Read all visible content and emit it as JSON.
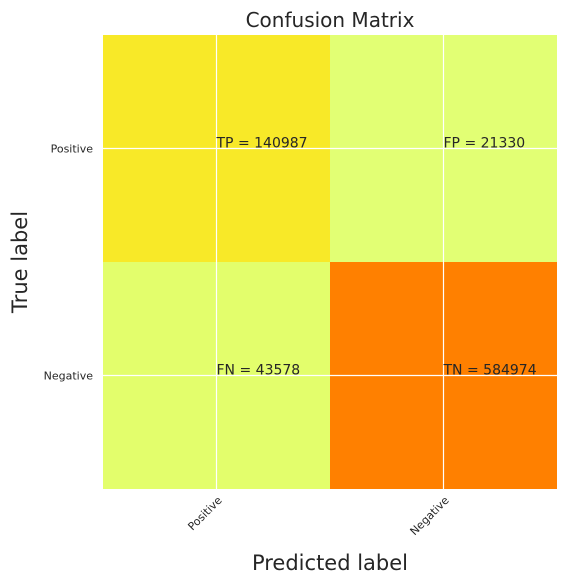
{
  "chart_data": {
    "type": "heatmap",
    "title": "Confusion Matrix",
    "xlabel": "Predicted label",
    "ylabel": "True label",
    "x_categories": [
      "Positive",
      "Negative"
    ],
    "y_categories": [
      "Positive",
      "Negative"
    ],
    "values": [
      [
        140987,
        21330
      ],
      [
        43578,
        584974
      ]
    ],
    "cell_labels": [
      [
        "TP = 140987",
        "FP = 21330"
      ],
      [
        "FN = 43578",
        "TN = 584974"
      ]
    ],
    "cell_colors": [
      [
        "#f8e928",
        "#e2ff74"
      ],
      [
        "#e3fe6c",
        "#ff8000"
      ]
    ],
    "grid": true,
    "colormap": "Wistia"
  }
}
